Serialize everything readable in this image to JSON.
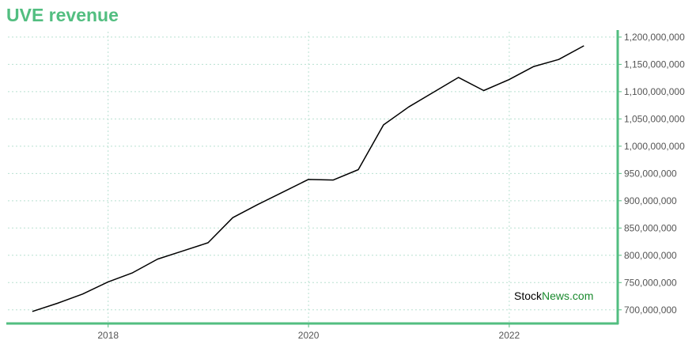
{
  "chart_data": {
    "type": "line",
    "title": "UVE revenue",
    "xlabel": "",
    "ylabel": "",
    "x_ticks": [
      "2018",
      "2020",
      "2022"
    ],
    "x_tick_values": [
      "2018-01-01",
      "2020-01-01",
      "2022-01-01"
    ],
    "xlim": [
      "2017-01-01",
      "2023-01-31"
    ],
    "ylim": [
      675000000,
      1210000000
    ],
    "y_ticks": [
      700000000,
      750000000,
      800000000,
      850000000,
      900000000,
      950000000,
      1000000000,
      1050000000,
      1100000000,
      1150000000,
      1200000000
    ],
    "y_tick_labels": [
      "700,000,000",
      "750,000,000",
      "800,000,000",
      "850,000,000",
      "900,000,000",
      "950,000,000",
      "1,000,000,000",
      "1,050,000,000",
      "1,100,000,000",
      "1,150,000,000",
      "1,200,000,000"
    ],
    "y_axis_position": "right",
    "grid": true,
    "series": [
      {
        "x": [
          "2017-03-31",
          "2017-06-30",
          "2017-09-30",
          "2017-12-31",
          "2018-03-31",
          "2018-06-30",
          "2018-09-30",
          "2018-12-31",
          "2019-03-31",
          "2019-06-30",
          "2019-09-30",
          "2019-12-31",
          "2020-03-31",
          "2020-06-30",
          "2020-09-30",
          "2020-12-31",
          "2021-03-31",
          "2021-06-30",
          "2021-09-30",
          "2021-12-31",
          "2022-03-31",
          "2022-06-30",
          "2022-09-30"
        ],
        "values": [
          697000000,
          712000000,
          729000000,
          751000000,
          768000000,
          793000000,
          808000000,
          823000000,
          869000000,
          893000000,
          916000000,
          939000000,
          938000000,
          957000000,
          1039000000,
          1072000000,
          1099000000,
          1126000000,
          1102000000,
          1122000000,
          1146000000,
          1159000000,
          1184000000
        ]
      }
    ],
    "colors": {
      "title": "#52be80",
      "line": "#000000",
      "axis": "#52be80",
      "grid": "#b8e0d0"
    }
  },
  "watermark": {
    "part1": "Stock",
    "part2": "News",
    "part3": ".com"
  }
}
